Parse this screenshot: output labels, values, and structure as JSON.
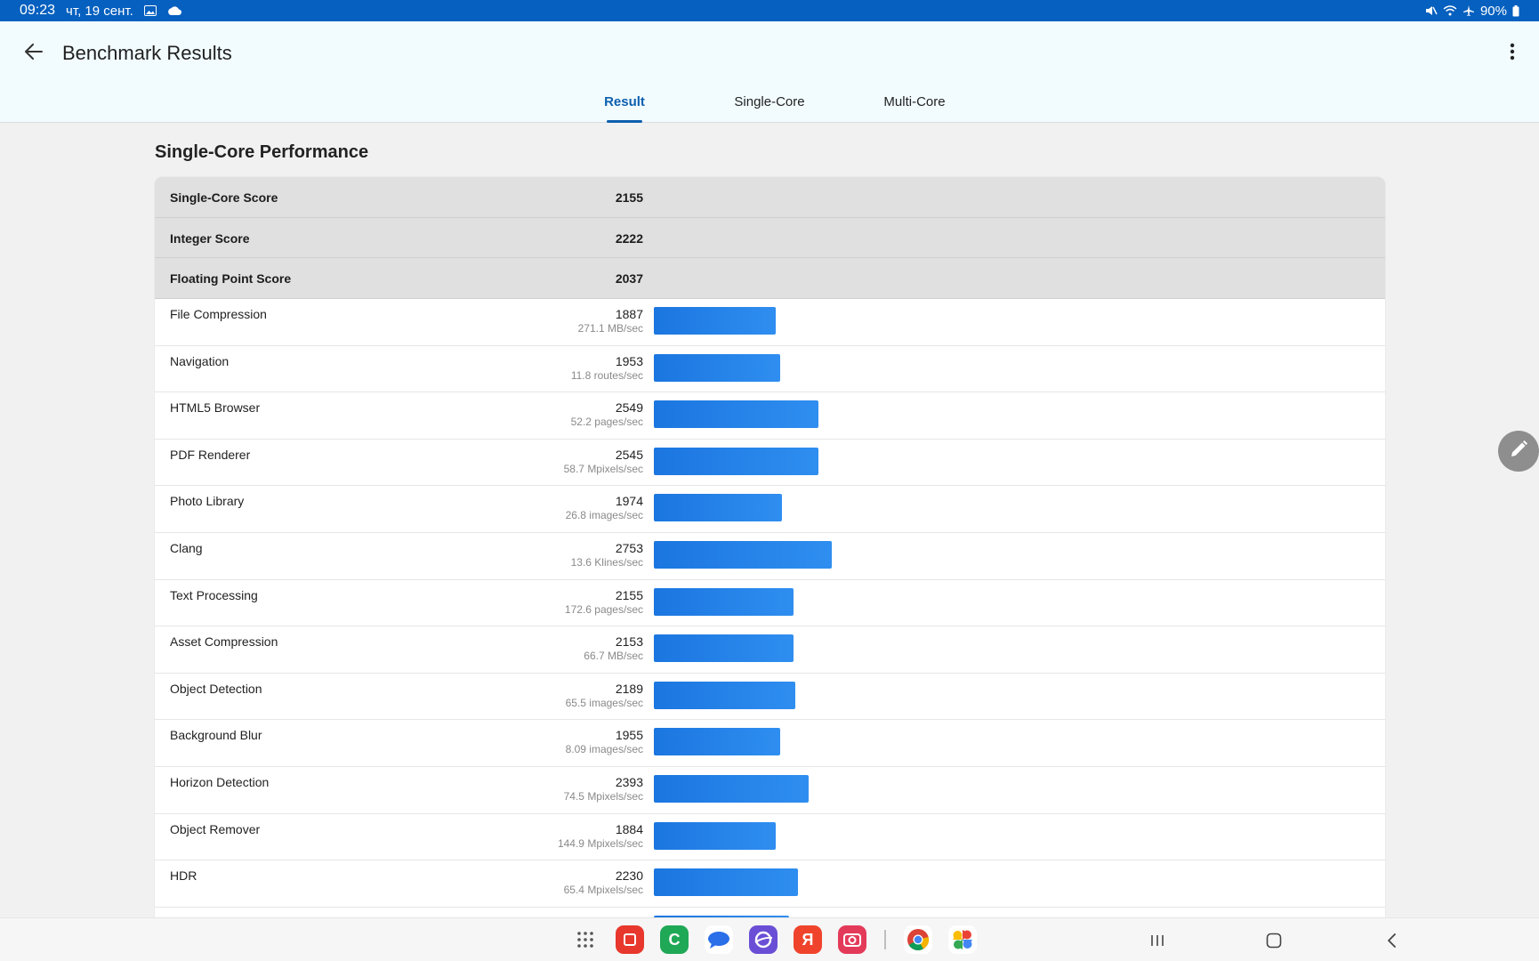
{
  "status_bar": {
    "time": "09:23",
    "date": "чт, 19 сент.",
    "battery": "90%"
  },
  "app_bar": {
    "title": "Benchmark Results",
    "tabs": [
      {
        "label": "Result",
        "active": true
      },
      {
        "label": "Single-Core",
        "active": false
      },
      {
        "label": "Multi-Core",
        "active": false
      }
    ]
  },
  "section": {
    "title": "Single-Core Performance"
  },
  "summary": [
    {
      "label": "Single-Core Score",
      "value": "2155"
    },
    {
      "label": "Integer Score",
      "value": "2222"
    },
    {
      "label": "Floating Point Score",
      "value": "2037"
    }
  ],
  "benchmarks": [
    {
      "name": "File Compression",
      "score": "1887",
      "rate": "271.1 MB/sec"
    },
    {
      "name": "Navigation",
      "score": "1953",
      "rate": "11.8 routes/sec"
    },
    {
      "name": "HTML5 Browser",
      "score": "2549",
      "rate": "52.2 pages/sec"
    },
    {
      "name": "PDF Renderer",
      "score": "2545",
      "rate": "58.7 Mpixels/sec"
    },
    {
      "name": "Photo Library",
      "score": "1974",
      "rate": "26.8 images/sec"
    },
    {
      "name": "Clang",
      "score": "2753",
      "rate": "13.6 Klines/sec"
    },
    {
      "name": "Text Processing",
      "score": "2155",
      "rate": "172.6 pages/sec"
    },
    {
      "name": "Asset Compression",
      "score": "2153",
      "rate": "66.7 MB/sec"
    },
    {
      "name": "Object Detection",
      "score": "2189",
      "rate": "65.5 images/sec"
    },
    {
      "name": "Background Blur",
      "score": "1955",
      "rate": "8.09 images/sec"
    },
    {
      "name": "Horizon Detection",
      "score": "2393",
      "rate": "74.5 Mpixels/sec"
    },
    {
      "name": "Object Remover",
      "score": "1884",
      "rate": "144.9 Mpixels/sec"
    },
    {
      "name": "HDR",
      "score": "2230",
      "rate": "65.4 Mpixels/sec"
    }
  ],
  "colors": {
    "status_bar": "#0560bf",
    "accent": "#0d5fae",
    "bar": "#1b76e0"
  },
  "dock_apps": [
    {
      "icon": "notes-app-icon",
      "glyph": "",
      "color": "#e8372c"
    },
    {
      "icon": "phone-app-icon",
      "glyph": "C",
      "color": "#1fa856"
    },
    {
      "icon": "messages-app-icon",
      "glyph": "",
      "color": "#2a6ee8"
    },
    {
      "icon": "browser-app-icon",
      "glyph": "",
      "color": "#6a4fd6"
    },
    {
      "icon": "yandex-app-icon",
      "glyph": "Я",
      "color": "#f0432c"
    },
    {
      "icon": "camera-app-icon",
      "glyph": "",
      "color": "#e43a5a"
    },
    {
      "icon": "chrome-app-icon",
      "glyph": "",
      "color": "#ffffff"
    },
    {
      "icon": "photos-app-icon",
      "glyph": "",
      "color": "#ffffff"
    }
  ]
}
